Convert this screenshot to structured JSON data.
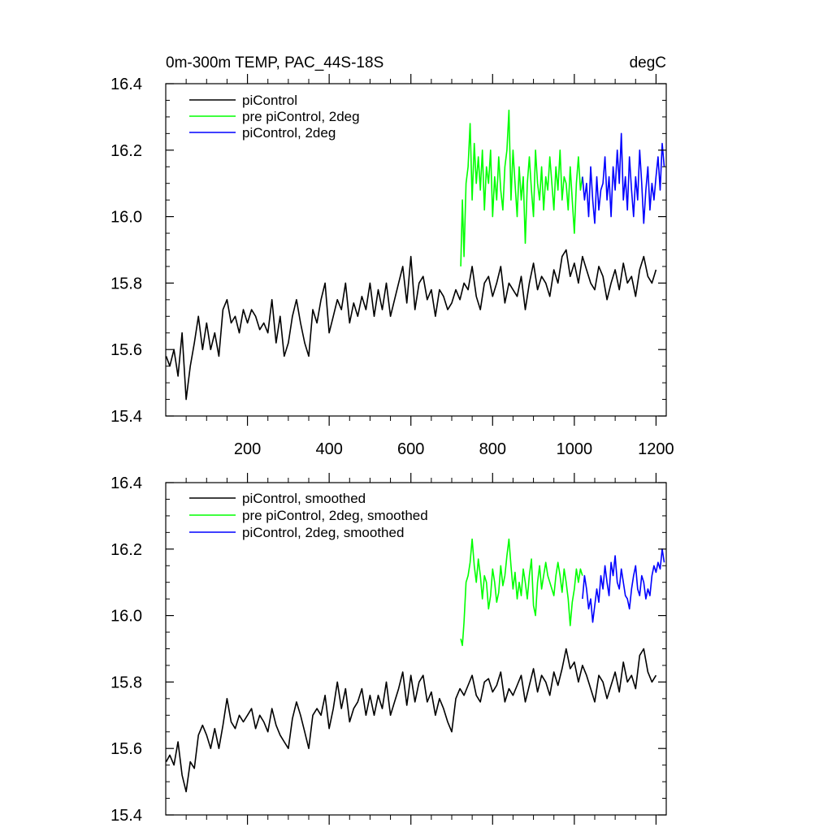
{
  "chart_data": [
    {
      "type": "line",
      "title_left": "0m-300m TEMP, PAC_44S-18S",
      "title_right": "degC",
      "xlabel": "",
      "ylabel": "",
      "xlim": [
        0,
        1225
      ],
      "ylim": [
        15.4,
        16.4
      ],
      "x_ticks": [
        200,
        400,
        600,
        800,
        1000,
        1200
      ],
      "x_tick_labels": [
        "200",
        "400",
        "600",
        "800",
        "1000",
        "1200"
      ],
      "y_ticks": [
        15.4,
        15.6,
        15.8,
        16.0,
        16.2,
        16.4
      ],
      "y_tick_labels": [
        "15.4",
        "15.6",
        "15.8",
        "16.0",
        "16.2",
        "16.4"
      ],
      "legend_position": "top-left",
      "grid": false,
      "series": [
        {
          "name": "piControl",
          "color": "#000000",
          "x": [
            1,
            10,
            20,
            30,
            40,
            50,
            60,
            70,
            80,
            90,
            100,
            110,
            120,
            130,
            140,
            150,
            160,
            170,
            180,
            190,
            200,
            210,
            220,
            230,
            240,
            250,
            260,
            270,
            280,
            290,
            300,
            310,
            320,
            330,
            340,
            350,
            360,
            370,
            380,
            390,
            400,
            410,
            420,
            430,
            440,
            450,
            460,
            470,
            480,
            490,
            500,
            510,
            520,
            530,
            540,
            550,
            560,
            570,
            580,
            590,
            600,
            610,
            620,
            630,
            640,
            650,
            660,
            670,
            680,
            690,
            700,
            710,
            720,
            730,
            740,
            750,
            760,
            770,
            780,
            790,
            800,
            810,
            820,
            830,
            840,
            850,
            860,
            870,
            880,
            890,
            900,
            910,
            920,
            930,
            940,
            950,
            960,
            970,
            980,
            990,
            1000,
            1010,
            1020,
            1030,
            1040,
            1050,
            1060,
            1070,
            1080,
            1090,
            1100,
            1110,
            1120,
            1130,
            1140,
            1150,
            1160,
            1170,
            1180,
            1190,
            1200
          ],
          "values": [
            15.58,
            15.55,
            15.6,
            15.52,
            15.65,
            15.45,
            15.55,
            15.62,
            15.7,
            15.6,
            15.68,
            15.6,
            15.65,
            15.58,
            15.72,
            15.75,
            15.68,
            15.7,
            15.65,
            15.72,
            15.68,
            15.72,
            15.7,
            15.66,
            15.68,
            15.65,
            15.75,
            15.62,
            15.7,
            15.58,
            15.62,
            15.7,
            15.75,
            15.68,
            15.62,
            15.58,
            15.72,
            15.68,
            15.75,
            15.8,
            15.65,
            15.7,
            15.75,
            15.72,
            15.8,
            15.68,
            15.74,
            15.7,
            15.76,
            15.72,
            15.8,
            15.7,
            15.78,
            15.72,
            15.8,
            15.7,
            15.75,
            15.8,
            15.85,
            15.74,
            15.88,
            15.72,
            15.8,
            15.82,
            15.75,
            15.78,
            15.7,
            15.78,
            15.76,
            15.72,
            15.74,
            15.78,
            15.75,
            15.8,
            15.78,
            15.85,
            15.76,
            15.72,
            15.8,
            15.82,
            15.76,
            15.8,
            15.85,
            15.74,
            15.8,
            15.78,
            15.76,
            15.82,
            15.72,
            15.8,
            15.86,
            15.78,
            15.82,
            15.8,
            15.76,
            15.84,
            15.8,
            15.88,
            15.9,
            15.82,
            15.86,
            15.8,
            15.88,
            15.84,
            15.8,
            15.78,
            15.85,
            15.82,
            15.75,
            15.8,
            15.84,
            15.78,
            15.86,
            15.8,
            15.82,
            15.76,
            15.84,
            15.88,
            15.82,
            15.8,
            15.84
          ]
        },
        {
          "name": "pre piControl, 2deg",
          "color": "#00ff00",
          "x": [
            722,
            726,
            730,
            735,
            740,
            745,
            750,
            755,
            760,
            765,
            770,
            775,
            780,
            785,
            790,
            795,
            800,
            805,
            810,
            815,
            820,
            825,
            830,
            835,
            840,
            845,
            850,
            855,
            860,
            865,
            870,
            875,
            880,
            885,
            890,
            895,
            900,
            905,
            910,
            915,
            920,
            925,
            930,
            935,
            940,
            945,
            950,
            955,
            960,
            965,
            970,
            975,
            980,
            985,
            990,
            995,
            1000,
            1005,
            1010,
            1015,
            1020
          ],
          "values": [
            15.85,
            16.05,
            15.88,
            16.1,
            16.15,
            16.28,
            16.05,
            16.22,
            16.1,
            16.18,
            16.08,
            16.2,
            16.02,
            16.15,
            16.1,
            16.2,
            16.0,
            16.12,
            16.05,
            16.18,
            16.08,
            16.02,
            16.15,
            16.2,
            16.32,
            16.05,
            16.2,
            16.1,
            16.0,
            16.15,
            16.05,
            16.12,
            15.92,
            16.1,
            16.18,
            16.08,
            16.0,
            16.2,
            16.1,
            16.05,
            16.15,
            16.02,
            16.12,
            16.08,
            16.18,
            16.1,
            16.02,
            16.15,
            16.08,
            16.2,
            16.05,
            16.12,
            16.1,
            16.02,
            16.15,
            16.05,
            15.95,
            16.1,
            16.18,
            16.08,
            16.12
          ]
        },
        {
          "name": "piControl, 2deg",
          "color": "#0000ff",
          "x": [
            1020,
            1025,
            1030,
            1035,
            1040,
            1045,
            1050,
            1055,
            1060,
            1065,
            1070,
            1075,
            1080,
            1085,
            1090,
            1095,
            1100,
            1105,
            1110,
            1115,
            1120,
            1125,
            1130,
            1135,
            1140,
            1145,
            1150,
            1155,
            1160,
            1165,
            1170,
            1175,
            1180,
            1185,
            1190,
            1195,
            1200,
            1205,
            1210,
            1215,
            1220
          ],
          "values": [
            16.12,
            16.05,
            16.1,
            16.0,
            16.15,
            16.05,
            15.98,
            16.12,
            16.02,
            16.08,
            16.1,
            16.18,
            16.05,
            16.12,
            16.0,
            16.15,
            16.08,
            16.2,
            16.1,
            16.25,
            16.05,
            16.12,
            16.02,
            16.18,
            16.08,
            16.0,
            16.12,
            16.05,
            16.2,
            16.1,
            15.98,
            16.08,
            16.15,
            16.02,
            16.1,
            16.05,
            16.12,
            16.18,
            16.08,
            16.22,
            16.15
          ]
        }
      ]
    },
    {
      "type": "line",
      "xlabel": "",
      "ylabel": "",
      "xlim": [
        0,
        1225
      ],
      "ylim": [
        15.4,
        16.4
      ],
      "x_ticks": [
        200,
        400,
        600,
        800,
        1000,
        1200
      ],
      "y_ticks": [
        15.4,
        15.6,
        15.8,
        16.0,
        16.2,
        16.4
      ],
      "y_tick_labels": [
        "15.4",
        "15.6",
        "15.8",
        "16.0",
        "16.2",
        "16.4"
      ],
      "legend_position": "top-left",
      "grid": false,
      "series": [
        {
          "name": "piControl, smoothed",
          "color": "#000000",
          "x": [
            1,
            10,
            20,
            30,
            40,
            50,
            60,
            70,
            80,
            90,
            100,
            110,
            120,
            130,
            140,
            150,
            160,
            170,
            180,
            190,
            200,
            210,
            220,
            230,
            240,
            250,
            260,
            270,
            280,
            290,
            300,
            310,
            320,
            330,
            340,
            350,
            360,
            370,
            380,
            390,
            400,
            410,
            420,
            430,
            440,
            450,
            460,
            470,
            480,
            490,
            500,
            510,
            520,
            530,
            540,
            550,
            560,
            570,
            580,
            590,
            600,
            610,
            620,
            630,
            640,
            650,
            660,
            670,
            680,
            690,
            700,
            710,
            720,
            730,
            740,
            750,
            760,
            770,
            780,
            790,
            800,
            810,
            820,
            830,
            840,
            850,
            860,
            870,
            880,
            890,
            900,
            910,
            920,
            930,
            940,
            950,
            960,
            970,
            980,
            990,
            1000,
            1010,
            1020,
            1030,
            1040,
            1050,
            1060,
            1070,
            1080,
            1090,
            1100,
            1110,
            1120,
            1130,
            1140,
            1150,
            1160,
            1170,
            1180,
            1190,
            1200
          ],
          "values": [
            15.56,
            15.58,
            15.55,
            15.62,
            15.52,
            15.47,
            15.56,
            15.54,
            15.64,
            15.67,
            15.64,
            15.6,
            15.66,
            15.6,
            15.67,
            15.75,
            15.68,
            15.66,
            15.7,
            15.68,
            15.7,
            15.72,
            15.66,
            15.7,
            15.68,
            15.65,
            15.72,
            15.67,
            15.64,
            15.62,
            15.6,
            15.69,
            15.74,
            15.7,
            15.65,
            15.6,
            15.7,
            15.72,
            15.7,
            15.76,
            15.66,
            15.72,
            15.8,
            15.72,
            15.78,
            15.68,
            15.72,
            15.74,
            15.78,
            15.7,
            15.76,
            15.7,
            15.76,
            15.72,
            15.8,
            15.7,
            15.74,
            15.78,
            15.83,
            15.73,
            15.82,
            15.74,
            15.8,
            15.82,
            15.74,
            15.77,
            15.7,
            15.75,
            15.72,
            15.68,
            15.65,
            15.75,
            15.78,
            15.76,
            15.79,
            15.82,
            15.76,
            15.74,
            15.8,
            15.81,
            15.77,
            15.79,
            15.83,
            15.74,
            15.78,
            15.76,
            15.79,
            15.82,
            15.74,
            15.79,
            15.84,
            15.77,
            15.82,
            15.8,
            15.76,
            15.83,
            15.79,
            15.84,
            15.9,
            15.84,
            15.86,
            15.8,
            15.85,
            15.82,
            15.78,
            15.74,
            15.82,
            15.8,
            15.75,
            15.79,
            15.83,
            15.77,
            15.86,
            15.8,
            15.82,
            15.78,
            15.88,
            15.9,
            15.83,
            15.8,
            15.82
          ]
        },
        {
          "name": "pre piControl, 2deg, smoothed",
          "color": "#00ff00",
          "x": [
            722,
            726,
            730,
            735,
            740,
            745,
            750,
            755,
            760,
            765,
            770,
            775,
            780,
            785,
            790,
            795,
            800,
            805,
            810,
            815,
            820,
            825,
            830,
            835,
            840,
            845,
            850,
            855,
            860,
            865,
            870,
            875,
            880,
            885,
            890,
            895,
            900,
            905,
            910,
            915,
            920,
            925,
            930,
            935,
            940,
            945,
            950,
            955,
            960,
            965,
            970,
            975,
            980,
            985,
            990,
            995,
            1000,
            1005,
            1010,
            1015,
            1020
          ],
          "values": [
            15.93,
            15.91,
            15.98,
            16.1,
            16.12,
            16.16,
            16.23,
            16.15,
            16.1,
            16.17,
            16.12,
            16.05,
            16.12,
            16.1,
            16.02,
            16.06,
            16.14,
            16.1,
            16.04,
            16.07,
            16.15,
            16.09,
            16.12,
            16.18,
            16.23,
            16.15,
            16.08,
            16.13,
            16.05,
            16.1,
            16.06,
            16.14,
            16.1,
            16.05,
            16.12,
            16.17,
            16.03,
            16.0,
            16.1,
            16.15,
            16.08,
            16.12,
            16.16,
            16.12,
            16.1,
            16.08,
            16.06,
            16.12,
            16.16,
            16.12,
            16.07,
            16.14,
            16.1,
            16.05,
            15.97,
            16.04,
            16.08,
            16.14,
            16.1,
            16.14,
            16.12
          ]
        },
        {
          "name": "piControl, 2deg, smoothed",
          "color": "#0000ff",
          "x": [
            1020,
            1025,
            1030,
            1035,
            1040,
            1045,
            1050,
            1055,
            1060,
            1065,
            1070,
            1075,
            1080,
            1085,
            1090,
            1095,
            1100,
            1105,
            1110,
            1115,
            1120,
            1125,
            1130,
            1135,
            1140,
            1145,
            1150,
            1155,
            1160,
            1165,
            1170,
            1175,
            1180,
            1185,
            1190,
            1195,
            1200,
            1205,
            1210,
            1215,
            1220
          ],
          "values": [
            16.05,
            16.12,
            16.08,
            16.02,
            16.05,
            15.98,
            16.03,
            16.08,
            16.04,
            16.12,
            16.08,
            16.15,
            16.1,
            16.06,
            16.16,
            16.12,
            16.18,
            16.1,
            16.08,
            16.14,
            16.1,
            16.06,
            16.05,
            16.02,
            16.08,
            16.12,
            16.15,
            16.08,
            16.06,
            16.12,
            16.1,
            16.05,
            16.08,
            16.06,
            16.12,
            16.15,
            16.13,
            16.16,
            16.14,
            16.2,
            16.16
          ]
        }
      ]
    }
  ]
}
